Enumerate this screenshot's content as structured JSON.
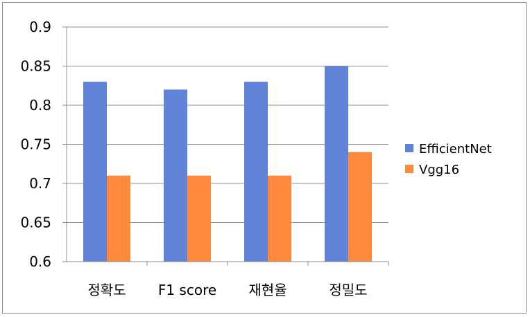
{
  "chart_data": {
    "type": "bar",
    "title": "",
    "xlabel": "",
    "ylabel": "",
    "categories": [
      "정확도",
      "F1 score",
      "재현율",
      "정밀도"
    ],
    "series": [
      {
        "name": "EfficientNet",
        "color": "#6083d8",
        "values": [
          0.83,
          0.82,
          0.83,
          0.85
        ]
      },
      {
        "name": "Vgg16",
        "color": "#ff8a3d",
        "values": [
          0.71,
          0.71,
          0.71,
          0.74
        ]
      }
    ],
    "ylim": [
      0.6,
      0.9
    ],
    "yticks": [
      "0.6",
      "0.65",
      "0.7",
      "0.75",
      "0.8",
      "0.85",
      "0.9"
    ],
    "grid": true,
    "legend_position": "right"
  }
}
